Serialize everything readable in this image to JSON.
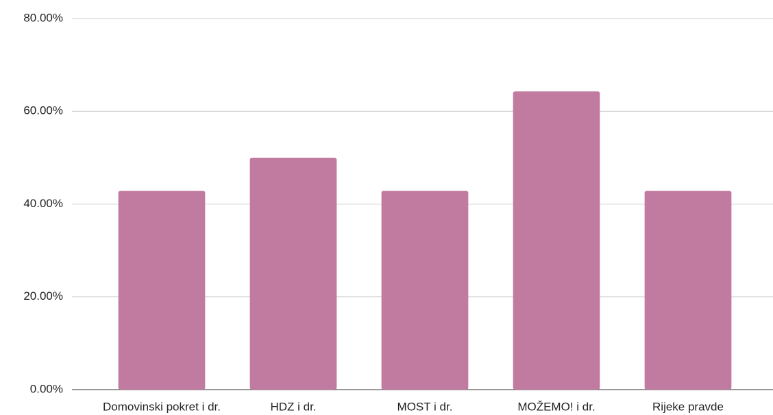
{
  "chart_data": {
    "type": "bar",
    "categories": [
      "Domovinski pokret i dr.",
      "HDZ i dr.",
      "MOST i dr.",
      "MOŽEMO! i dr.",
      "Rijeke pravde"
    ],
    "values": [
      42.86,
      50,
      42.86,
      64.29,
      42.86
    ],
    "color": "#c27ba0",
    "ylim": [
      0,
      80
    ],
    "yticks": [
      {
        "value": 0,
        "label": "0.00%"
      },
      {
        "value": 20,
        "label": "20.00%"
      },
      {
        "value": 40,
        "label": "40.00%"
      },
      {
        "value": 60,
        "label": "60.00%"
      },
      {
        "value": 80,
        "label": "80.00%"
      }
    ],
    "grid": true
  }
}
